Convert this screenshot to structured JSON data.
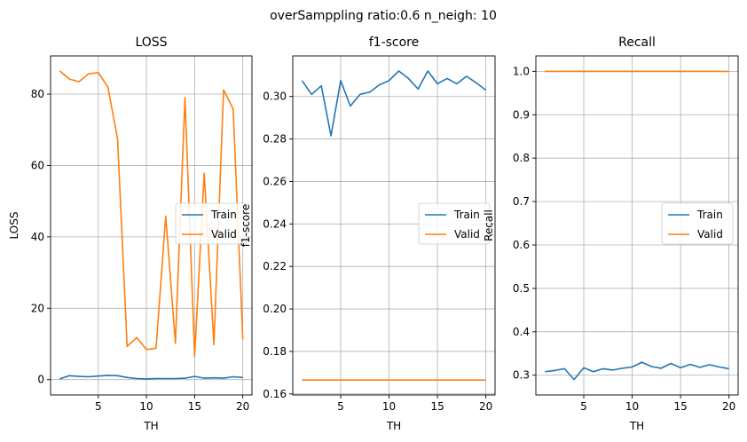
{
  "figure": {
    "suptitle": "overSamppling ratio:0.6 n_neigh: 10"
  },
  "colors": {
    "train": "#1f77b4",
    "valid": "#ff7f0e",
    "grid": "#b0b0b0"
  },
  "chart_data": [
    {
      "type": "line",
      "title": "LOSS",
      "xlabel": "TH",
      "ylabel": "LOSS",
      "xlim": [
        0.05,
        20.95
      ],
      "ylim": [
        -4.3,
        90.7
      ],
      "xticks": [
        5,
        10,
        15,
        20
      ],
      "yticks": [
        0,
        20,
        40,
        60,
        80
      ],
      "ytick_decimals": 0,
      "grid": true,
      "legend": "center right",
      "x": [
        1,
        2,
        3,
        4,
        5,
        6,
        7,
        8,
        9,
        10,
        11,
        12,
        13,
        14,
        15,
        16,
        17,
        18,
        19,
        20
      ],
      "series": [
        {
          "name": "Train",
          "values": [
            0.2,
            1.1,
            0.9,
            0.8,
            1.0,
            1.2,
            1.1,
            0.6,
            0.3,
            0.2,
            0.3,
            0.3,
            0.3,
            0.4,
            0.9,
            0.4,
            0.5,
            0.4,
            0.8,
            0.6
          ]
        },
        {
          "name": "Valid",
          "values": [
            86.5,
            84.2,
            83.5,
            85.7,
            86.0,
            82.0,
            67.5,
            9.3,
            11.8,
            8.4,
            8.8,
            45.8,
            10.2,
            79.0,
            6.5,
            57.8,
            9.8,
            81.2,
            75.8,
            11.3
          ]
        }
      ]
    },
    {
      "type": "line",
      "title": "f1-score",
      "xlabel": "TH",
      "ylabel": "f1-score",
      "xlim": [
        0.05,
        20.95
      ],
      "ylim": [
        0.1595,
        0.3191
      ],
      "xticks": [
        5,
        10,
        15,
        20
      ],
      "yticks": [
        0.16,
        0.18,
        0.2,
        0.22,
        0.24,
        0.26,
        0.28,
        0.3
      ],
      "ytick_decimals": 2,
      "grid": true,
      "legend": "center right",
      "x": [
        1,
        2,
        3,
        4,
        5,
        6,
        7,
        8,
        9,
        10,
        11,
        12,
        13,
        14,
        15,
        16,
        17,
        18,
        19,
        20
      ],
      "series": [
        {
          "name": "Train",
          "values": [
            0.3075,
            0.301,
            0.305,
            0.2815,
            0.3075,
            0.2955,
            0.301,
            0.302,
            0.3055,
            0.3075,
            0.312,
            0.3085,
            0.3035,
            0.312,
            0.306,
            0.3085,
            0.306,
            0.3095,
            0.3065,
            0.303
          ]
        },
        {
          "name": "Valid",
          "values": [
            0.1665,
            0.1665,
            0.1665,
            0.1665,
            0.1665,
            0.1665,
            0.1665,
            0.1665,
            0.1665,
            0.1665,
            0.1665,
            0.1665,
            0.1665,
            0.1665,
            0.1665,
            0.1665,
            0.1665,
            0.1665,
            0.1665,
            0.1665
          ]
        }
      ]
    },
    {
      "type": "line",
      "title": "Recall",
      "xlabel": "TH",
      "ylabel": "Recall",
      "xlim": [
        0.05,
        20.95
      ],
      "ylim": [
        0.2545,
        1.0355
      ],
      "xticks": [
        5,
        10,
        15,
        20
      ],
      "yticks": [
        0.3,
        0.4,
        0.5,
        0.6,
        0.7,
        0.8,
        0.9,
        1.0
      ],
      "ytick_decimals": 1,
      "grid": true,
      "legend": "center right",
      "x": [
        1,
        2,
        3,
        4,
        5,
        6,
        7,
        8,
        9,
        10,
        11,
        12,
        13,
        14,
        15,
        16,
        17,
        18,
        19,
        20
      ],
      "series": [
        {
          "name": "Train",
          "values": [
            0.308,
            0.311,
            0.315,
            0.29,
            0.317,
            0.308,
            0.315,
            0.312,
            0.316,
            0.319,
            0.33,
            0.32,
            0.316,
            0.327,
            0.317,
            0.325,
            0.318,
            0.324,
            0.319,
            0.315
          ]
        },
        {
          "name": "Valid",
          "values": [
            1.0,
            1.0,
            1.0,
            1.0,
            1.0,
            1.0,
            1.0,
            1.0,
            1.0,
            1.0,
            1.0,
            1.0,
            1.0,
            1.0,
            1.0,
            1.0,
            1.0,
            1.0,
            1.0,
            1.0
          ]
        }
      ]
    }
  ]
}
